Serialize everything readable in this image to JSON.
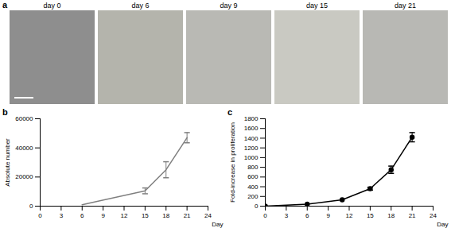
{
  "images": {
    "panel": "a",
    "captions": [
      "day 0",
      "day 6",
      "day 9",
      "day 15",
      "day 21"
    ]
  },
  "chart_data": [
    {
      "type": "line",
      "panel": "b",
      "x": [
        6,
        15,
        18,
        21
      ],
      "values": [
        1000,
        10500,
        25000,
        47000
      ],
      "errors": [
        null,
        2000,
        5500,
        3500
      ],
      "color": "#7f7f7f",
      "marker": "none",
      "line_style": "solid",
      "xlabel": "Day",
      "ylabel": "Absolute number",
      "xlim": [
        0,
        24
      ],
      "xticks": [
        0,
        3,
        6,
        9,
        12,
        15,
        18,
        21,
        24
      ],
      "ylim": [
        0,
        60000
      ],
      "yticks": [
        0,
        20000,
        40000,
        60000
      ],
      "grid": false
    },
    {
      "type": "line",
      "panel": "c",
      "x": [
        0,
        6,
        11,
        15,
        18,
        21
      ],
      "values": [
        1,
        40,
        130,
        360,
        750,
        1420
      ],
      "errors": [
        null,
        null,
        null,
        30,
        75,
        95
      ],
      "color": "#000000",
      "marker": "circle",
      "line_style": "solid",
      "xlabel": "Day",
      "ylabel": "Fold-increase in proliferation",
      "xlim": [
        0,
        24
      ],
      "xticks": [
        0,
        3,
        6,
        9,
        12,
        15,
        18,
        21,
        24
      ],
      "ylim": [
        0,
        1800
      ],
      "yticks": [
        0,
        200,
        400,
        600,
        800,
        1000,
        1200,
        1400,
        1600,
        1800
      ],
      "grid": false
    }
  ]
}
